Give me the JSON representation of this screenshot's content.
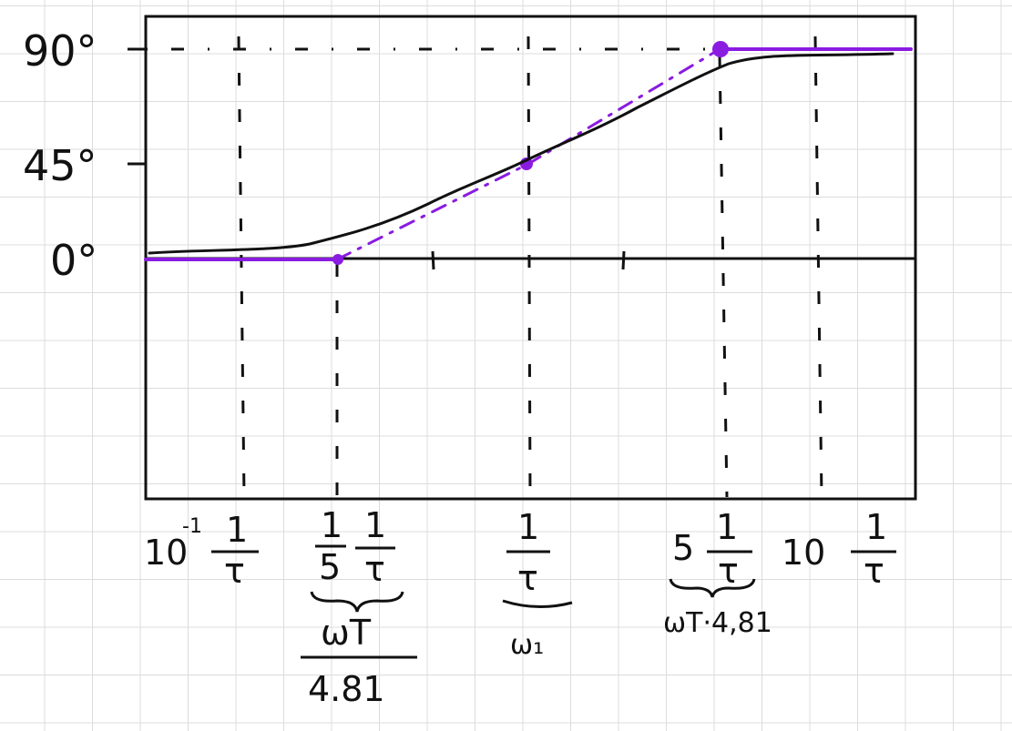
{
  "y_axis": {
    "ticks": [
      {
        "label": "90°",
        "value": 90
      },
      {
        "label": "45°",
        "value": 45
      },
      {
        "label": "0°",
        "value": 0
      }
    ]
  },
  "x_axis": {
    "ticks": [
      {
        "prefix": "10",
        "exp": "-1",
        "numerator": "1",
        "denominator": "τ"
      },
      {
        "coef_num": "1",
        "coef_den": "5",
        "numerator": "1",
        "denominator": "τ"
      },
      {
        "numerator": "1",
        "denominator": "τ"
      },
      {
        "prefix": "5",
        "numerator": "1",
        "denominator": "τ"
      },
      {
        "prefix": "10",
        "numerator": "1",
        "denominator": "τ"
      }
    ]
  },
  "annotations": {
    "left_num": "ωT",
    "left_den": "4.81",
    "center": "ω₁",
    "right": "ωT·4,81"
  },
  "colors": {
    "curve": "#111111",
    "asymptote": "#8a1be0",
    "grid": "#dcdcdc"
  }
}
